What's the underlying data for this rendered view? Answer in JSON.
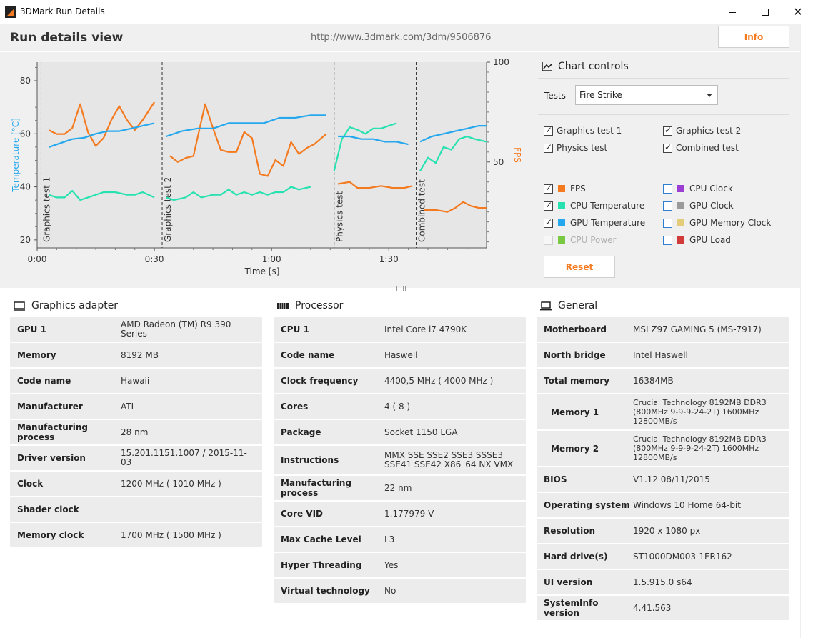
{
  "window": {
    "title": "3DMark Run Details"
  },
  "header": {
    "title": "Run details view",
    "url": "http://www.3dmark.com/3dm/9506876",
    "info_label": "Info"
  },
  "chart_data": {
    "type": "line",
    "xlabel": "Time [s]",
    "ylabel_left": "Temperature [°C]",
    "ylabel_right": "FPS",
    "x_ticks": [
      "0:00",
      "0:30",
      "1:00",
      "1:30"
    ],
    "x_range_s": [
      0,
      115
    ],
    "y_left_ticks": [
      20,
      40,
      60,
      80
    ],
    "y_left_range": [
      17,
      87
    ],
    "y_right_ticks": [
      50,
      100
    ],
    "y_right_range": [
      7,
      100
    ],
    "sections": [
      {
        "label": "Graphics test 1",
        "start": 1,
        "end": 32
      },
      {
        "label": "Graphics test 2",
        "start": 32,
        "end": 76
      },
      {
        "label": "Physics test",
        "start": 76,
        "end": 97
      },
      {
        "label": "Combined test",
        "start": 97,
        "end": 115
      }
    ],
    "series": [
      {
        "name": "FPS",
        "color": "#f47a20",
        "axis": "right",
        "segments": [
          [
            [
              3,
              66
            ],
            [
              5,
              64
            ],
            [
              7,
              64
            ],
            [
              9,
              67
            ],
            [
              11,
              79
            ],
            [
              13,
              65
            ],
            [
              15,
              58
            ],
            [
              17,
              62
            ],
            [
              19,
              71
            ],
            [
              21,
              78
            ],
            [
              23,
              71
            ],
            [
              25,
              66
            ],
            [
              27,
              71
            ],
            [
              30,
              80
            ]
          ],
          [
            [
              34,
              53
            ],
            [
              36,
              50
            ],
            [
              38,
              52
            ],
            [
              40,
              53
            ],
            [
              43,
              79
            ],
            [
              45,
              67
            ],
            [
              47,
              56
            ],
            [
              49,
              55
            ],
            [
              51,
              55
            ],
            [
              53,
              65
            ],
            [
              55,
              62
            ],
            [
              57,
              44
            ],
            [
              59,
              43
            ],
            [
              61,
              51
            ],
            [
              63,
              48
            ],
            [
              65,
              60
            ],
            [
              67,
              54
            ],
            [
              69,
              57
            ],
            [
              71,
              59
            ],
            [
              74,
              64
            ]
          ],
          [
            [
              77,
              39
            ],
            [
              80,
              40
            ],
            [
              82,
              37
            ],
            [
              85,
              37
            ],
            [
              88,
              38
            ],
            [
              91,
              37
            ],
            [
              94,
              37
            ],
            [
              96,
              38
            ]
          ],
          [
            [
              99,
              26
            ],
            [
              102,
              26
            ],
            [
              105,
              25
            ],
            [
              107,
              27
            ],
            [
              109,
              30
            ],
            [
              111,
              28
            ],
            [
              113,
              27
            ],
            [
              115,
              27
            ]
          ]
        ]
      },
      {
        "name": "CPU Temperature",
        "color": "#27e2b0",
        "axis": "left",
        "segments": [
          [
            [
              3,
              37
            ],
            [
              5,
              36
            ],
            [
              7,
              36
            ],
            [
              9,
              38.5
            ],
            [
              11,
              35
            ],
            [
              14,
              36.5
            ],
            [
              17,
              38
            ],
            [
              20,
              38
            ],
            [
              23,
              37
            ],
            [
              25,
              37
            ],
            [
              27,
              38
            ],
            [
              30,
              36
            ]
          ],
          [
            [
              33,
              36
            ],
            [
              35,
              35
            ],
            [
              38,
              36
            ],
            [
              40,
              38
            ],
            [
              42,
              36
            ],
            [
              45,
              37
            ],
            [
              47,
              37
            ],
            [
              49,
              39
            ],
            [
              51,
              37
            ],
            [
              53,
              38
            ],
            [
              55,
              37
            ],
            [
              57,
              38
            ],
            [
              59,
              37
            ],
            [
              61,
              38
            ],
            [
              63,
              38
            ],
            [
              65,
              40
            ],
            [
              67,
              39
            ],
            [
              70,
              40
            ]
          ],
          [
            [
              76,
              46
            ],
            [
              78,
              58
            ],
            [
              80,
              62.5
            ],
            [
              82,
              61.5
            ],
            [
              84,
              60
            ],
            [
              86,
              62
            ],
            [
              88,
              62
            ],
            [
              90,
              63
            ],
            [
              92,
              64
            ]
          ],
          [
            [
              98,
              46
            ],
            [
              100,
              51
            ],
            [
              102,
              49
            ],
            [
              104,
              55
            ],
            [
              106,
              54
            ],
            [
              108,
              58
            ],
            [
              110,
              59
            ],
            [
              112,
              58
            ],
            [
              115,
              57
            ]
          ]
        ]
      },
      {
        "name": "GPU Temperature",
        "color": "#26a8ee",
        "axis": "left",
        "segments": [
          [
            [
              3,
              55
            ],
            [
              6,
              56.5
            ],
            [
              9,
              58
            ],
            [
              12,
              58.5
            ],
            [
              15,
              60
            ],
            [
              18,
              61
            ],
            [
              21,
              61
            ],
            [
              24,
              62
            ],
            [
              27,
              63
            ],
            [
              30,
              64
            ]
          ],
          [
            [
              33,
              59
            ],
            [
              37,
              61
            ],
            [
              41,
              62
            ],
            [
              45,
              62
            ],
            [
              49,
              64
            ],
            [
              54,
              64
            ],
            [
              58,
              64
            ],
            [
              62,
              66
            ],
            [
              66,
              66
            ],
            [
              70,
              67
            ],
            [
              74,
              67
            ]
          ],
          [
            [
              77,
              59
            ],
            [
              80,
              59
            ],
            [
              83,
              58
            ],
            [
              86,
              58
            ],
            [
              89,
              57
            ],
            [
              92,
              57
            ],
            [
              95,
              56
            ]
          ],
          [
            [
              98,
              57
            ],
            [
              101,
              59
            ],
            [
              104,
              60
            ],
            [
              107,
              61
            ],
            [
              110,
              62
            ],
            [
              113,
              63
            ],
            [
              115,
              63
            ]
          ]
        ]
      }
    ]
  },
  "controls": {
    "title": "Chart controls",
    "tests_label": "Tests",
    "tests_selected": "Fire Strike",
    "tests": [
      {
        "label": "Graphics test 1",
        "checked": true
      },
      {
        "label": "Graphics test 2",
        "checked": true
      },
      {
        "label": "Physics test",
        "checked": true
      },
      {
        "label": "Combined test",
        "checked": true
      }
    ],
    "metrics": [
      {
        "label": "FPS",
        "checked": true,
        "color": "#f47a20"
      },
      {
        "label": "CPU Clock",
        "checked": false,
        "color": "#9b3fd4"
      },
      {
        "label": "CPU Temperature",
        "checked": true,
        "color": "#27e2b0"
      },
      {
        "label": "GPU Clock",
        "checked": false,
        "color": "#9a9a9a"
      },
      {
        "label": "GPU Temperature",
        "checked": true,
        "color": "#26a8ee"
      },
      {
        "label": "GPU Memory Clock",
        "checked": false,
        "color": "#e3cc7a"
      },
      {
        "label": "CPU Power",
        "checked": false,
        "color": "#7ac943",
        "disabled": true
      },
      {
        "label": "GPU Load",
        "checked": false,
        "color": "#d33a3a"
      }
    ],
    "reset_label": "Reset"
  },
  "graphics": {
    "title": "Graphics adapter",
    "rows": [
      {
        "k": "GPU 1",
        "v": "AMD Radeon (TM) R9 390 Series"
      },
      {
        "k": "Memory",
        "v": "8192 MB"
      },
      {
        "k": "Code name",
        "v": "Hawaii"
      },
      {
        "k": "Manufacturer",
        "v": "ATI"
      },
      {
        "k": "Manufacturing process",
        "v": "28 nm"
      },
      {
        "k": "Driver version",
        "v": "15.201.1151.1007 / 2015-11-03"
      },
      {
        "k": "Clock",
        "v": "1200 MHz ( 1010 MHz )"
      },
      {
        "k": "Shader clock",
        "v": ""
      },
      {
        "k": "Memory clock",
        "v": "1700 MHz ( 1500 MHz )"
      }
    ]
  },
  "processor": {
    "title": "Processor",
    "rows": [
      {
        "k": "CPU 1",
        "v": "Intel Core i7 4790K"
      },
      {
        "k": "Code name",
        "v": "Haswell"
      },
      {
        "k": "Clock frequency",
        "v": "4400,5 MHz ( 4000 MHz )"
      },
      {
        "k": "Cores",
        "v": "4 ( 8 )"
      },
      {
        "k": "Package",
        "v": "Socket 1150 LGA"
      },
      {
        "k": "Instructions",
        "v": "MMX SSE SSE2 SSE3 SSSE3 SSE41 SSE42 X86_64 NX VMX"
      },
      {
        "k": "Manufacturing process",
        "v": "22 nm"
      },
      {
        "k": "Core VID",
        "v": "1.177979 V"
      },
      {
        "k": "Max Cache Level",
        "v": "L3"
      },
      {
        "k": "Hyper Threading",
        "v": "Yes"
      },
      {
        "k": "Virtual technology",
        "v": "No"
      }
    ]
  },
  "general": {
    "title": "General",
    "rows": [
      {
        "k": "Motherboard",
        "v": "MSI Z97 GAMING 5 (MS-7917)"
      },
      {
        "k": "North bridge",
        "v": "Intel Haswell"
      },
      {
        "k": "Total memory",
        "v": "16384MB"
      },
      {
        "k": "Memory 1",
        "v": "Crucial Technology 8192MB  DDR3 (800MHz 9-9-9-24-2T) 1600MHz 12800MB/s",
        "sub": true
      },
      {
        "k": "Memory 2",
        "v": "Crucial Technology 8192MB  DDR3 (800MHz 9-9-9-24-2T) 1600MHz 12800MB/s",
        "sub": true
      },
      {
        "k": "BIOS",
        "v": "V1.12 08/11/2015"
      },
      {
        "k": "Operating system",
        "v": "Windows 10 Home 64-bit"
      },
      {
        "k": "Resolution",
        "v": "1920 x 1080 px"
      },
      {
        "k": "Hard drive(s)",
        "v": "ST1000DM003-1ER162"
      },
      {
        "k": "UI version",
        "v": "1.5.915.0 s64"
      },
      {
        "k": "SystemInfo version",
        "v": "4.41.563"
      }
    ]
  }
}
